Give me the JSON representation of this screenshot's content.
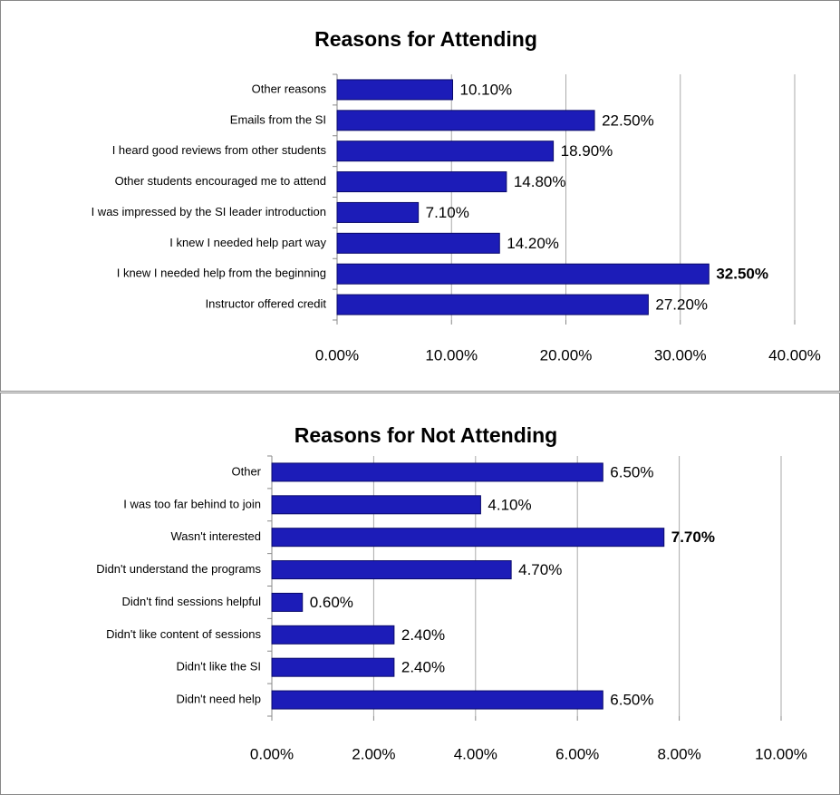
{
  "chart_data": [
    {
      "type": "bar",
      "orientation": "horizontal",
      "title": "Reasons for Attending",
      "categories": [
        "Other reasons",
        "Emails from the SI",
        "I heard good reviews from other students",
        "Other students encouraged me to attend",
        "I was impressed by the SI leader introduction",
        "I knew I needed help part way",
        "I knew I needed help from the beginning",
        "Instructor offered credit"
      ],
      "values": [
        10.1,
        22.5,
        18.9,
        14.8,
        7.1,
        14.2,
        32.5,
        27.2
      ],
      "value_labels": [
        "10.10%",
        "22.50%",
        "18.90%",
        "14.80%",
        "7.10%",
        "14.20%",
        "32.50%",
        "27.20%"
      ],
      "color": "#1c1cb8",
      "xlim": [
        0,
        40
      ],
      "xticks": [
        {
          "value": 0,
          "label": "0.00%"
        },
        {
          "value": 10,
          "label": "10.00%"
        },
        {
          "value": 20,
          "label": "20.00%"
        },
        {
          "value": 30,
          "label": "30.00%"
        },
        {
          "value": 40,
          "label": "40.00%"
        }
      ],
      "grid": true
    },
    {
      "type": "bar",
      "orientation": "horizontal",
      "title": "Reasons for Not Attending",
      "categories": [
        "Other",
        "I was too far behind to join",
        "Wasn't interested",
        "Didn't understand the programs",
        "Didn't find sessions helpful",
        "Didn't like content of sessions",
        "Didn't like the SI",
        "Didn't need help"
      ],
      "values": [
        6.5,
        4.1,
        7.7,
        4.7,
        0.6,
        2.4,
        2.4,
        6.5
      ],
      "value_labels": [
        "6.50%",
        "4.10%",
        "7.70%",
        "4.70%",
        "0.60%",
        "2.40%",
        "2.40%",
        "6.50%"
      ],
      "color": "#1c1cb8",
      "xlim": [
        0,
        10
      ],
      "xticks": [
        {
          "value": 0,
          "label": "0.00%"
        },
        {
          "value": 2,
          "label": "2.00%"
        },
        {
          "value": 4,
          "label": "4.00%"
        },
        {
          "value": 6,
          "label": "6.00%"
        },
        {
          "value": 8,
          "label": "8.00%"
        },
        {
          "value": 10,
          "label": "10.00%"
        }
      ],
      "grid": true
    }
  ]
}
